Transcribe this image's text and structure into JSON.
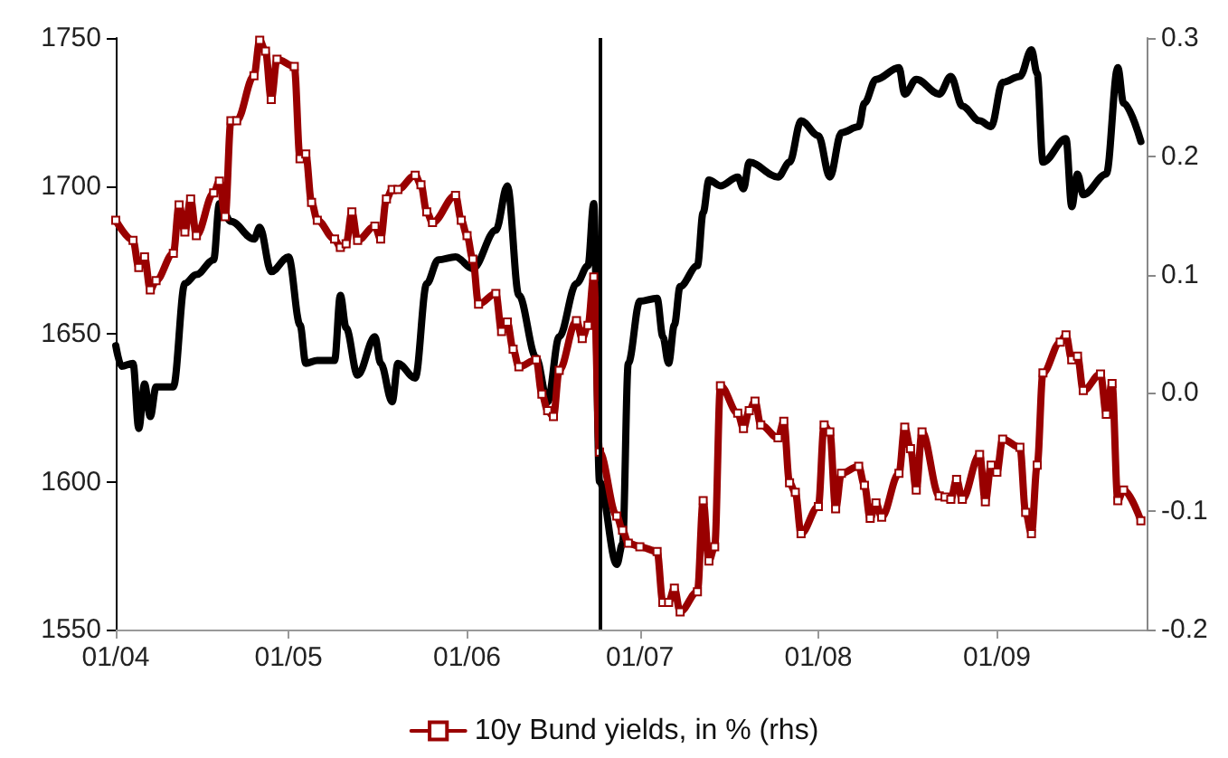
{
  "chart_data": {
    "type": "line",
    "xlim": [
      "--04-01",
      "--09-27"
    ],
    "xticks": [
      {
        "value": "--04-01",
        "label": "01/04"
      },
      {
        "value": "--05-01",
        "label": "01/05"
      },
      {
        "value": "--06-01",
        "label": "01/06"
      },
      {
        "value": "--07-01",
        "label": "01/07"
      },
      {
        "value": "--08-01",
        "label": "01/08"
      },
      {
        "value": "--09-01",
        "label": "01/09"
      }
    ],
    "ylim": [
      1550,
      1750
    ],
    "yticks": [
      1550,
      1600,
      1650,
      1700,
      1750
    ],
    "y2lim": [
      -0.2,
      0.3
    ],
    "y2ticks": [
      -0.2,
      -0.1,
      {
        "value": 0,
        "label": "0.0"
      },
      0.1,
      0.2,
      0.3
    ],
    "grid": false,
    "legend": "bottom",
    "line_style": "solid",
    "ref_lines": [
      {
        "axis": "x",
        "value": "--06-24",
        "color": "#000000"
      }
    ],
    "series": [
      {
        "color": "#000000",
        "marker": "none",
        "x": [
          "--04-01",
          "--04-02",
          "--04-04",
          "--04-05",
          "--04-06",
          "--04-07",
          "--04-08",
          "--04-11",
          "--04-13",
          "--04-15",
          "--04-18",
          "--04-19",
          "--04-21",
          "--04-25",
          "--04-26",
          "--04-28",
          "--05-01",
          "--05-03",
          "--05-04",
          "--05-06",
          "--05-09",
          "--05-10",
          "--05-11",
          "--05-13",
          "--05-16",
          "--05-17",
          "--05-19",
          "--05-20",
          "--05-23",
          "--05-25",
          "--05-27",
          "--05-30",
          "--06-02",
          "--06-06",
          "--06-08",
          "--06-10",
          "--06-13",
          "--06-15",
          "--06-17",
          "--06-20",
          "--06-22",
          "--06-23",
          "--06-24",
          "--06-27",
          "--06-28",
          "--06-29",
          "--07-01",
          "--07-04",
          "--07-05",
          "--07-06",
          "--07-07",
          "--07-08",
          "--07-11",
          "--07-12",
          "--07-13",
          "--07-15",
          "--07-18",
          "--07-19",
          "--07-20",
          "--07-25",
          "--07-27",
          "--07-29",
          "--08-01",
          "--08-03",
          "--08-05",
          "--08-08",
          "--08-09",
          "--08-11",
          "--08-15",
          "--08-16",
          "--08-18",
          "--08-22",
          "--08-24",
          "--08-26",
          "--08-29",
          "--08-31",
          "--09-02",
          "--09-05",
          "--09-07",
          "--09-08",
          "--09-09",
          "--09-13",
          "--09-14",
          "--09-15",
          "--09-16",
          "--09-20",
          "--09-22",
          "--09-23",
          "--09-26"
        ],
        "values": [
          1646,
          1639,
          1640,
          1618,
          1633,
          1622,
          1632,
          1632,
          1667,
          1670,
          1675,
          1694,
          1688,
          1682,
          1686,
          1671,
          1676,
          1653,
          1640,
          1641,
          1641,
          1663,
          1652,
          1636,
          1649,
          1640,
          1627,
          1640,
          1635,
          1667,
          1675,
          1676,
          1672,
          1685,
          1700,
          1663,
          1642,
          1627,
          1649,
          1667,
          1673,
          1694,
          1600,
          1572,
          1579,
          1640,
          1661,
          1662,
          1649,
          1640,
          1653,
          1666,
          1673,
          1691,
          1702,
          1700,
          1703,
          1699,
          1708,
          1703,
          1708,
          1722,
          1717,
          1703,
          1718,
          1720,
          1728,
          1736,
          1740,
          1731,
          1736,
          1731,
          1737,
          1727,
          1722,
          1720,
          1735,
          1737,
          1746,
          1738,
          1708,
          1716,
          1693,
          1704,
          1697,
          1704,
          1740,
          1728,
          1715
        ]
      },
      {
        "name": "10y Bund yields, in % (rhs)",
        "color": "#990000",
        "axis": "y2",
        "marker": "square",
        "x": [
          "--04-01",
          "--04-04",
          "--04-05",
          "--04-06",
          "--04-07",
          "--04-08",
          "--04-11",
          "--04-12",
          "--04-13",
          "--04-14",
          "--04-15",
          "--04-18",
          "--04-19",
          "--04-20",
          "--04-21",
          "--04-22",
          "--04-25",
          "--04-26",
          "--04-27",
          "--04-28",
          "--04-29",
          "--05-02",
          "--05-03",
          "--05-04",
          "--05-05",
          "--05-06",
          "--05-09",
          "--05-10",
          "--05-11",
          "--05-12",
          "--05-13",
          "--05-16",
          "--05-17",
          "--05-18",
          "--05-19",
          "--05-20",
          "--05-23",
          "--05-24",
          "--05-25",
          "--05-26",
          "--05-30",
          "--05-31",
          "--06-01",
          "--06-02",
          "--06-03",
          "--06-06",
          "--06-07",
          "--06-08",
          "--06-09",
          "--06-10",
          "--06-13",
          "--06-14",
          "--06-15",
          "--06-16",
          "--06-17",
          "--06-20",
          "--06-21",
          "--06-22",
          "--06-23",
          "--06-24",
          "--06-27",
          "--06-28",
          "--06-29",
          "--07-01",
          "--07-04",
          "--07-05",
          "--07-06",
          "--07-07",
          "--07-08",
          "--07-11",
          "--07-12",
          "--07-13",
          "--07-14",
          "--07-15",
          "--07-18",
          "--07-19",
          "--07-20",
          "--07-21",
          "--07-22",
          "--07-25",
          "--07-26",
          "--07-27",
          "--07-28",
          "--07-29",
          "--08-01",
          "--08-02",
          "--08-03",
          "--08-04",
          "--08-05",
          "--08-08",
          "--08-09",
          "--08-10",
          "--08-11",
          "--08-12",
          "--08-15",
          "--08-16",
          "--08-17",
          "--08-18",
          "--08-19",
          "--08-22",
          "--08-23",
          "--08-24",
          "--08-25",
          "--08-26",
          "--08-29",
          "--08-30",
          "--08-31",
          "--09-01",
          "--09-02",
          "--09-05",
          "--09-06",
          "--09-07",
          "--09-08",
          "--09-09",
          "--09-12",
          "--09-13",
          "--09-14",
          "--09-15",
          "--09-16",
          "--09-19",
          "--09-20",
          "--09-21",
          "--09-22",
          "--09-23",
          "--09-26"
        ],
        "values": [
          0.146,
          0.129,
          0.106,
          0.115,
          0.087,
          0.095,
          0.118,
          0.159,
          0.136,
          0.164,
          0.133,
          0.169,
          0.179,
          0.149,
          0.23,
          0.23,
          0.268,
          0.298,
          0.289,
          0.248,
          0.282,
          0.276,
          0.198,
          0.202,
          0.161,
          0.146,
          0.13,
          0.123,
          0.126,
          0.153,
          0.129,
          0.141,
          0.13,
          0.164,
          0.172,
          0.172,
          0.184,
          0.176,
          0.153,
          0.144,
          0.167,
          0.146,
          0.133,
          0.113,
          0.075,
          0.084,
          0.052,
          0.06,
          0.037,
          0.022,
          0.028,
          -0.001,
          -0.015,
          -0.02,
          0.019,
          0.061,
          0.046,
          0.057,
          0.098,
          -0.05,
          -0.104,
          -0.116,
          -0.127,
          -0.13,
          -0.134,
          -0.177,
          -0.177,
          -0.165,
          -0.185,
          -0.168,
          -0.091,
          -0.142,
          -0.13,
          0.006,
          -0.017,
          -0.03,
          -0.015,
          -0.007,
          -0.027,
          -0.038,
          -0.024,
          -0.076,
          -0.084,
          -0.119,
          -0.096,
          -0.027,
          -0.033,
          -0.098,
          -0.068,
          -0.062,
          -0.078,
          -0.106,
          -0.093,
          -0.105,
          -0.068,
          -0.029,
          -0.047,
          -0.082,
          -0.033,
          -0.087,
          -0.088,
          -0.09,
          -0.073,
          -0.09,
          -0.052,
          -0.092,
          -0.061,
          -0.067,
          -0.039,
          -0.046,
          -0.101,
          -0.119,
          -0.061,
          0.017,
          0.043,
          0.049,
          0.028,
          0.031,
          0.002,
          0.016,
          -0.018,
          0.008,
          -0.091,
          -0.082,
          -0.108
        ]
      }
    ]
  }
}
